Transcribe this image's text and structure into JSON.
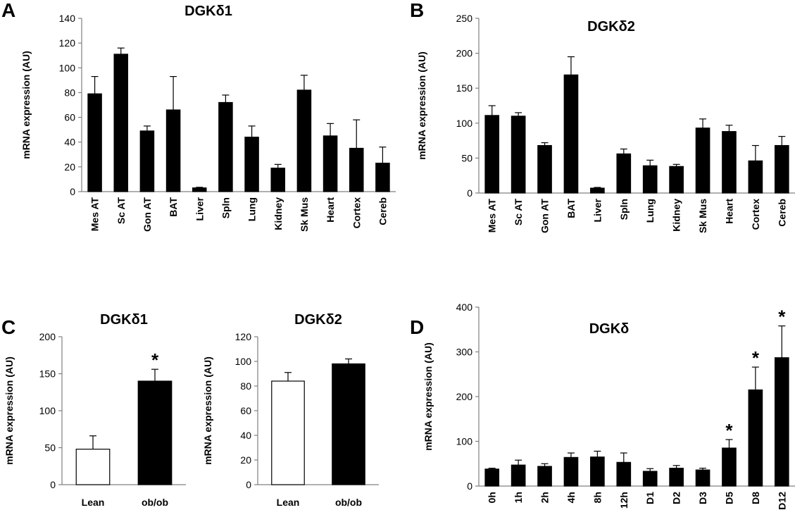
{
  "panels": [
    {
      "letter": "A"
    },
    {
      "letter": "B"
    },
    {
      "letter": "C"
    },
    {
      "letter": "D"
    }
  ],
  "chart_data": [
    {
      "panel": "A",
      "type": "bar",
      "title": "DGKδ1",
      "ylabel": "mRNA expression (AU)",
      "ylim": [
        0,
        140
      ],
      "yticks": [
        0,
        20,
        40,
        60,
        80,
        100,
        120,
        140
      ],
      "grid": false,
      "categories": [
        "Mes AT",
        "Sc AT",
        "Gon AT",
        "BAT",
        "Liver",
        "Spln",
        "Lung",
        "Kidney",
        "Sk Mus",
        "Heart",
        "Cortex",
        "Cereb"
      ],
      "series": [
        {
          "values": [
            79,
            111,
            49,
            66,
            3,
            72,
            44,
            19,
            82,
            45,
            35,
            23
          ],
          "errors": [
            14,
            5,
            4,
            27,
            0.5,
            6,
            9,
            3,
            12,
            10,
            23,
            13
          ],
          "color": "#000000"
        }
      ]
    },
    {
      "panel": "B",
      "type": "bar",
      "title": "DGKδ2",
      "ylabel": "mRNA expression (AU)",
      "ylim": [
        0,
        250
      ],
      "yticks": [
        0,
        50,
        100,
        150,
        200,
        250
      ],
      "grid": false,
      "categories": [
        "Mes AT",
        "Sc AT",
        "Gon AT",
        "BAT",
        "Liver",
        "Spln",
        "Lung",
        "Kidney",
        "Sk Mus",
        "Heart",
        "Cortex",
        "Cereb"
      ],
      "series": [
        {
          "values": [
            111,
            110,
            68,
            169,
            7,
            56,
            39,
            38,
            93,
            88,
            46,
            68
          ],
          "errors": [
            14,
            5,
            4,
            26,
            1,
            7,
            8,
            3,
            13,
            9,
            22,
            13
          ],
          "color": "#000000"
        }
      ]
    },
    {
      "panel": "C",
      "type": "bar",
      "title": "DGKδ1",
      "ylabel": "mRNA expression (AU)",
      "ylim": [
        0,
        200
      ],
      "yticks": [
        0,
        50,
        100,
        150,
        200
      ],
      "grid": false,
      "categories": [
        "Lean",
        "ob/ob"
      ],
      "series": [
        {
          "values": [
            48,
            140
          ],
          "errors": [
            18,
            16
          ],
          "colors": [
            "#ffffff",
            "#000000"
          ],
          "significance": [
            "",
            "*"
          ]
        }
      ]
    },
    {
      "panel": "C",
      "type": "bar",
      "title": "DGKδ2",
      "ylabel": "mRNA expression (AU)",
      "ylim": [
        0,
        120
      ],
      "yticks": [
        0,
        20,
        40,
        60,
        80,
        100,
        120
      ],
      "grid": false,
      "categories": [
        "Lean",
        "ob/ob"
      ],
      "series": [
        {
          "values": [
            84,
            98
          ],
          "errors": [
            7,
            4
          ],
          "colors": [
            "#ffffff",
            "#000000"
          ],
          "significance": [
            "",
            ""
          ]
        }
      ]
    },
    {
      "panel": "D",
      "type": "bar",
      "title": "DGKδ",
      "ylabel": "mRNA expression (AU)",
      "ylim": [
        0,
        400
      ],
      "yticks": [
        0,
        100,
        200,
        300,
        400
      ],
      "grid": false,
      "categories": [
        "0h",
        "1h",
        "2h",
        "4h",
        "8h",
        "12h",
        "D1",
        "D2",
        "D3",
        "D5",
        "D8",
        "D12"
      ],
      "series": [
        {
          "values": [
            38,
            47,
            44,
            64,
            65,
            53,
            33,
            40,
            36,
            85,
            215,
            287
          ],
          "errors": [
            2,
            11,
            6,
            10,
            13,
            21,
            6,
            6,
            4,
            19,
            51,
            71
          ],
          "color": "#000000",
          "significance": [
            "",
            "",
            "",
            "",
            "",
            "",
            "",
            "",
            "",
            "*",
            "*",
            "*"
          ]
        }
      ]
    }
  ]
}
